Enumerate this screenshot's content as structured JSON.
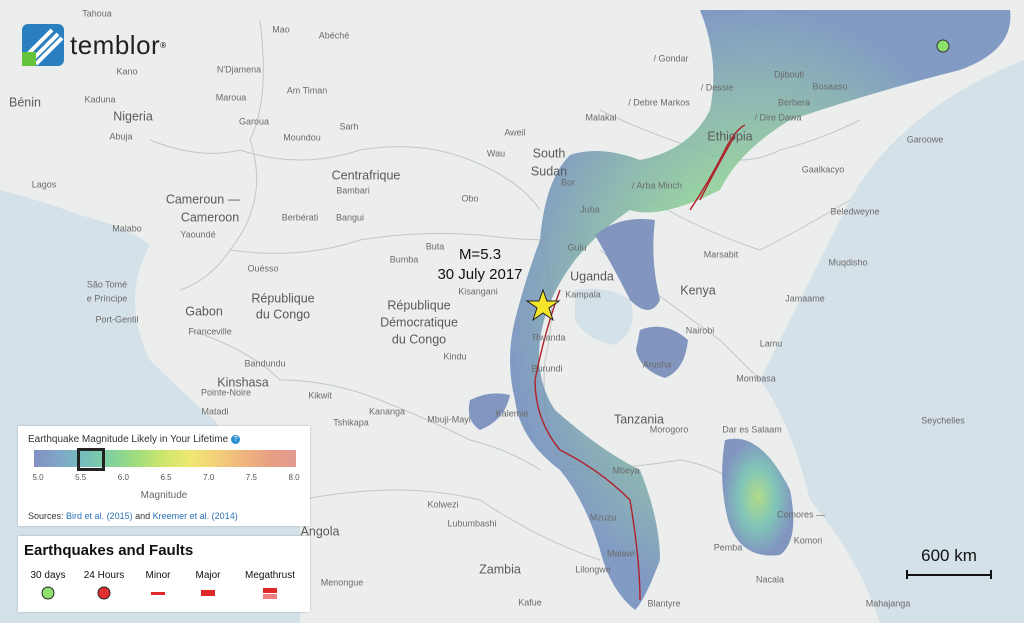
{
  "logo": "temblor",
  "annotation": {
    "magnitude": "M=5.3",
    "date": "30 July 2017"
  },
  "legend": {
    "title": "Earthquake Magnitude Likely in Your Lifetime",
    "ticks": [
      "5.0",
      "5.5",
      "6.0",
      "6.5",
      "7.0",
      "7.5",
      "8.0"
    ],
    "axis_label": "Magnitude",
    "sources_prefix": "Sources:",
    "source_1": "Bird et al. (2015)",
    "sources_join": "and",
    "source_2": "Kreemer et al. (2014)"
  },
  "faults_legend": {
    "title": "Earthquakes and Faults",
    "items": [
      "30 days",
      "24 Hours",
      "Minor",
      "Major",
      "Megathrust"
    ]
  },
  "scale_bar": "600 km",
  "places": [
    "Tahoua",
    "Mao",
    "Abéché",
    "Kano",
    "N'Djamena",
    "Maroua",
    "Am Timan",
    "Bénin",
    "Kaduna",
    "Nigeria",
    "Abuja",
    "Garoua",
    "Sarh",
    "Moundou",
    "Lagos",
    "Centrafrique",
    "Bambari",
    "Cameroun —",
    "Cameroon",
    "Berbérati",
    "Bangui",
    "Obo",
    "Malabo",
    "Yaoundé",
    "Buta",
    "Bumba",
    "Ouésso",
    "Kisangani",
    "São Tomé",
    "e Príncipe",
    "Gabon",
    "République",
    "du Congo",
    "Port-Gentil",
    "Franceville",
    "République",
    "Démocratique",
    "du Congo",
    "Kindu",
    "Bandundu",
    "Kinshasa",
    "Pointe-Noire",
    "Kikwit",
    "Matadi",
    "Kananga",
    "Mbuji-Mayi",
    "Tshikapa",
    "Kalemie",
    "Kolwezi",
    "Lubumbashi",
    "Angola",
    "Zambia",
    "Menongue",
    "Kafue",
    "Lilongwe",
    "Malawi",
    "Mzuzu",
    "Mbeya",
    "Tanzania",
    "Morogoro",
    "Dar es Salaam",
    "Comores —",
    "Komori",
    "Pemba",
    "Nacala",
    "Blantyre",
    "Mahajanga",
    "Seychelles",
    "Mombasa",
    "Arusha",
    "Lamu",
    "Nairobi",
    "Kenya",
    "Kampala",
    "Uganda",
    "Gulu",
    "Rwanda",
    "Burundi",
    "Juba",
    "Bor",
    "South",
    "Sudan",
    "Wau",
    "Aweil",
    "Malakal",
    "/ Arba Minch",
    "Ethiopia",
    "Marsabit",
    "Gaalkacyo",
    "Beledweyne",
    "Muqdisho",
    "Jamaame",
    "Garoowe",
    "Bosaaso",
    "Berbera",
    "/ Dire Dawa",
    "Djibouti",
    "/ Debre Markos",
    "/ Dessie",
    "/ Gondar"
  ]
}
